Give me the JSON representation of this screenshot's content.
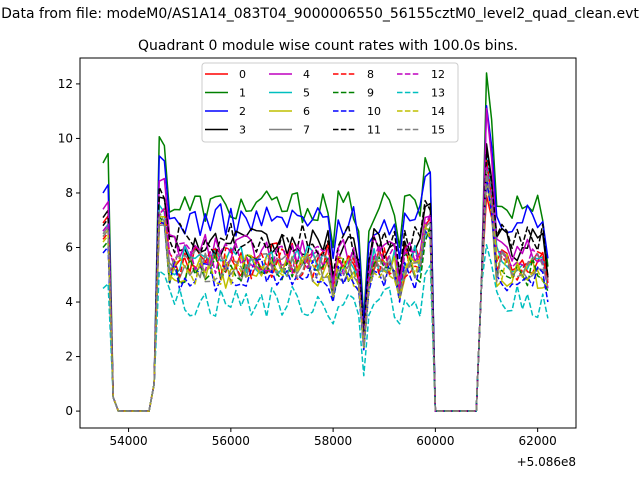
{
  "chart_data": {
    "type": "line",
    "suptitle": "Data from file: modeM0/AS1A14_083T04_9000006550_56155cztM0_level2_quad_clean.evt",
    "title": "Quadrant 0 module wise count rates with 100.0s bins.",
    "xlabel": "",
    "ylabel": "",
    "x_offset_label": "+5.086e8",
    "xlim": [
      53050,
      62750
    ],
    "ylim": [
      -0.62,
      12.95
    ],
    "xticks": [
      54000,
      56000,
      58000,
      60000,
      62000
    ],
    "xtick_labels": [
      "54000",
      "56000",
      "58000",
      "60000",
      "62000"
    ],
    "yticks": [
      0,
      2,
      4,
      6,
      8,
      10,
      12
    ],
    "ytick_labels": [
      "0",
      "2",
      "4",
      "6",
      "8",
      "10",
      "12"
    ],
    "grid": false,
    "legend_position": "upper-center",
    "bins": {
      "start": 53500,
      "step": 100,
      "count": 88,
      "zero_ranges": [
        [
          53800,
          54400
        ],
        [
          60000,
          60800
        ]
      ],
      "low_points": [
        53700,
        54500,
        60900
      ],
      "dip_points": [
        58000,
        58600,
        59300
      ]
    },
    "series": [
      {
        "name": "0",
        "color": "#ff0000",
        "dash": "solid",
        "start": 6.9,
        "level": 5.6,
        "peak": 7.9,
        "end": 4.8
      },
      {
        "name": "1",
        "color": "#008000",
        "dash": "solid",
        "start": 9.1,
        "level": 7.5,
        "peak": 12.4,
        "end": 5.3
      },
      {
        "name": "2",
        "color": "#0000ff",
        "dash": "solid",
        "start": 8.0,
        "level": 7.0,
        "peak": 11.2,
        "end": 5.6
      },
      {
        "name": "3",
        "color": "#000000",
        "dash": "solid",
        "start": 7.1,
        "level": 6.1,
        "peak": 9.8,
        "end": 4.9
      },
      {
        "name": "4",
        "color": "#bf00bf",
        "dash": "solid",
        "start": 7.4,
        "level": 5.9,
        "peak": 11.1,
        "end": 4.7
      },
      {
        "name": "5",
        "color": "#00bfbf",
        "dash": "solid",
        "start": 6.6,
        "level": 5.5,
        "peak": 9.4,
        "end": 4.5
      },
      {
        "name": "6",
        "color": "#bfbf00",
        "dash": "solid",
        "start": 6.4,
        "level": 5.1,
        "peak": 8.4,
        "end": 4.6
      },
      {
        "name": "7",
        "color": "#808080",
        "dash": "solid",
        "start": 6.5,
        "level": 5.3,
        "peak": 8.6,
        "end": 4.8
      },
      {
        "name": "8",
        "color": "#ff0000",
        "dash": "dashed",
        "start": 6.3,
        "level": 5.4,
        "peak": 9.2,
        "end": 4.7
      },
      {
        "name": "9",
        "color": "#008000",
        "dash": "dashed",
        "start": 6.0,
        "level": 5.2,
        "peak": 8.9,
        "end": 4.4
      },
      {
        "name": "10",
        "color": "#0000ff",
        "dash": "dashed",
        "start": 5.8,
        "level": 5.0,
        "peak": 8.5,
        "end": 4.0
      },
      {
        "name": "11",
        "color": "#000000",
        "dash": "dashed",
        "start": 6.8,
        "level": 6.3,
        "peak": 9.5,
        "end": 4.9
      },
      {
        "name": "12",
        "color": "#bf00bf",
        "dash": "dashed",
        "start": 6.6,
        "level": 5.6,
        "peak": 9.0,
        "end": 4.5
      },
      {
        "name": "13",
        "color": "#00bfbf",
        "dash": "dashed",
        "start": 4.5,
        "level": 4.0,
        "peak": 6.1,
        "end": 3.4
      },
      {
        "name": "14",
        "color": "#bfbf00",
        "dash": "dashed",
        "start": 6.2,
        "level": 5.2,
        "peak": 8.8,
        "end": 4.6
      },
      {
        "name": "15",
        "color": "#808080",
        "dash": "dashed",
        "start": 6.4,
        "level": 5.3,
        "peak": 8.8,
        "end": 4.7
      }
    ]
  }
}
